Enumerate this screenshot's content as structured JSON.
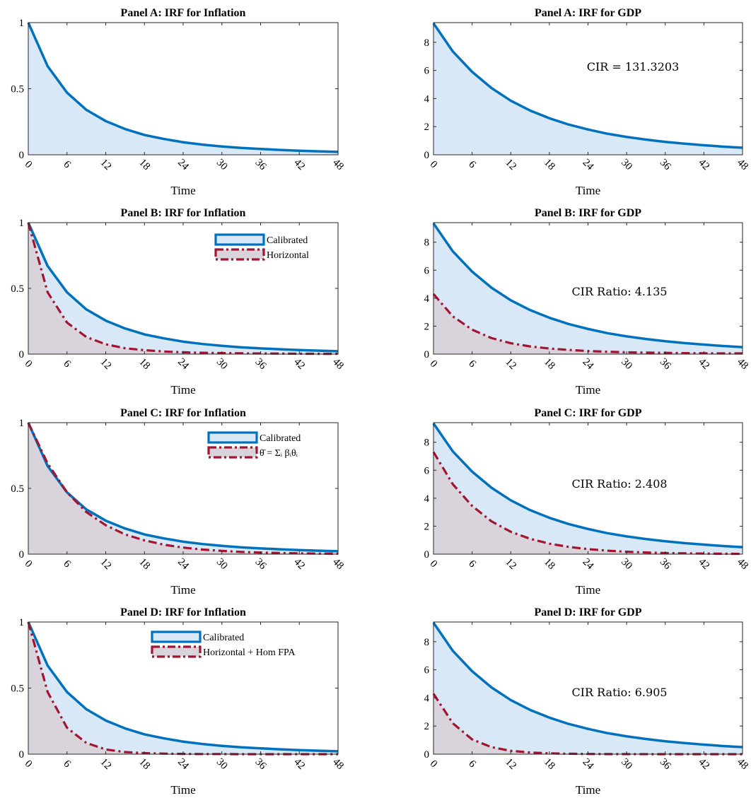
{
  "colors": {
    "calibrated_line": "#0072BD",
    "calibrated_fill": "#D9E8F6",
    "alt_line": "#A2142F",
    "alt_fill": "#D9D3DC"
  },
  "chart_data": [
    {
      "type": "area",
      "title": "Panel A: IRF for Inflation",
      "xlabel": "Time",
      "ylabel": "",
      "xlim": [
        0,
        48
      ],
      "ylim": [
        0,
        1
      ],
      "x_ticks": [
        "0",
        "6",
        "12",
        "18",
        "24",
        "30",
        "36",
        "42",
        "48"
      ],
      "y_ticks": [
        "0",
        "0.5",
        "1"
      ],
      "series": [
        {
          "name": "",
          "style": "solid",
          "x": [
            0,
            3,
            6,
            9,
            12,
            15,
            18,
            21,
            24,
            27,
            30,
            33,
            36,
            39,
            42,
            45,
            48
          ],
          "values": [
            1.0,
            0.67,
            0.47,
            0.34,
            0.255,
            0.195,
            0.15,
            0.12,
            0.095,
            0.077,
            0.063,
            0.052,
            0.044,
            0.037,
            0.031,
            0.026,
            0.022
          ]
        }
      ],
      "legend": [],
      "annotation": ""
    },
    {
      "type": "area",
      "title": "Panel A: IRF for GDP",
      "xlabel": "Time",
      "ylabel": "",
      "xlim": [
        0,
        48
      ],
      "ylim": [
        0,
        9.4
      ],
      "x_ticks": [
        "0",
        "6",
        "12",
        "18",
        "24",
        "30",
        "36",
        "42",
        "48"
      ],
      "y_ticks": [
        "0",
        "2",
        "4",
        "6",
        "8"
      ],
      "series": [
        {
          "name": "",
          "style": "solid",
          "x": [
            0,
            3,
            6,
            9,
            12,
            15,
            18,
            21,
            24,
            27,
            30,
            33,
            36,
            39,
            42,
            45,
            48
          ],
          "values": [
            9.35,
            7.35,
            5.9,
            4.75,
            3.85,
            3.15,
            2.6,
            2.15,
            1.8,
            1.5,
            1.27,
            1.08,
            0.92,
            0.79,
            0.68,
            0.58,
            0.5
          ]
        }
      ],
      "legend": [],
      "annotation": "CIR = 131.3203"
    },
    {
      "type": "area",
      "title": "Panel B: IRF for Inflation",
      "xlabel": "Time",
      "ylabel": "",
      "xlim": [
        0,
        48
      ],
      "ylim": [
        0,
        1
      ],
      "x_ticks": [
        "0",
        "6",
        "12",
        "18",
        "24",
        "30",
        "36",
        "42",
        "48"
      ],
      "y_ticks": [
        "0",
        "0.5",
        "1"
      ],
      "series": [
        {
          "name": "Calibrated",
          "style": "solid",
          "x": [
            0,
            3,
            6,
            9,
            12,
            15,
            18,
            21,
            24,
            27,
            30,
            33,
            36,
            39,
            42,
            45,
            48
          ],
          "values": [
            1.0,
            0.67,
            0.47,
            0.34,
            0.255,
            0.195,
            0.15,
            0.12,
            0.095,
            0.077,
            0.063,
            0.052,
            0.044,
            0.037,
            0.031,
            0.026,
            0.022
          ]
        },
        {
          "name": "Horizontal",
          "style": "dashdot",
          "x": [
            0,
            3,
            6,
            9,
            12,
            15,
            18,
            21,
            24,
            27,
            30,
            33,
            36,
            39,
            42,
            45,
            48
          ],
          "values": [
            1.0,
            0.47,
            0.24,
            0.13,
            0.075,
            0.045,
            0.03,
            0.02,
            0.014,
            0.01,
            0.008,
            0.006,
            0.005,
            0.004,
            0.003,
            0.002,
            0.002
          ]
        }
      ],
      "legend": [
        "Calibrated",
        "Horizontal"
      ],
      "annotation": "CIR Ratio: 4.135"
    },
    {
      "type": "area",
      "title": "Panel B: IRF for GDP",
      "xlabel": "Time",
      "ylabel": "",
      "xlim": [
        0,
        48
      ],
      "ylim": [
        0,
        9.4
      ],
      "x_ticks": [
        "0",
        "6",
        "12",
        "18",
        "24",
        "30",
        "36",
        "42",
        "48"
      ],
      "y_ticks": [
        "0",
        "2",
        "4",
        "6",
        "8"
      ],
      "series": [
        {
          "name": "Calibrated",
          "style": "solid",
          "x": [
            0,
            3,
            6,
            9,
            12,
            15,
            18,
            21,
            24,
            27,
            30,
            33,
            36,
            39,
            42,
            45,
            48
          ],
          "values": [
            9.35,
            7.35,
            5.9,
            4.75,
            3.85,
            3.15,
            2.6,
            2.15,
            1.8,
            1.5,
            1.27,
            1.08,
            0.92,
            0.79,
            0.68,
            0.58,
            0.5
          ]
        },
        {
          "name": "Horizontal",
          "style": "dashdot",
          "x": [
            0,
            3,
            6,
            9,
            12,
            15,
            18,
            21,
            24,
            27,
            30,
            33,
            36,
            39,
            42,
            45,
            48
          ],
          "values": [
            4.3,
            2.7,
            1.75,
            1.15,
            0.78,
            0.55,
            0.4,
            0.3,
            0.22,
            0.17,
            0.13,
            0.11,
            0.09,
            0.07,
            0.06,
            0.05,
            0.05
          ]
        }
      ],
      "legend": [],
      "annotation": "CIR Ratio: 4.135"
    },
    {
      "type": "area",
      "title": "Panel C: IRF for Inflation",
      "xlabel": "Time",
      "ylabel": "",
      "xlim": [
        0,
        48
      ],
      "ylim": [
        0,
        1
      ],
      "x_ticks": [
        "0",
        "6",
        "12",
        "18",
        "24",
        "30",
        "36",
        "42",
        "48"
      ],
      "y_ticks": [
        "0",
        "0.5",
        "1"
      ],
      "series": [
        {
          "name": "Calibrated",
          "style": "solid",
          "x": [
            0,
            3,
            6,
            9,
            12,
            15,
            18,
            21,
            24,
            27,
            30,
            33,
            36,
            39,
            42,
            45,
            48
          ],
          "values": [
            1.0,
            0.67,
            0.47,
            0.34,
            0.255,
            0.195,
            0.15,
            0.12,
            0.095,
            0.077,
            0.063,
            0.052,
            0.044,
            0.037,
            0.031,
            0.026,
            0.022
          ]
        },
        {
          "name": "θ̄ = Σᵢ βᵢθᵢ",
          "style": "dashdot",
          "x": [
            0,
            3,
            6,
            9,
            12,
            15,
            18,
            21,
            24,
            27,
            30,
            33,
            36,
            39,
            42,
            45,
            48
          ],
          "values": [
            1.0,
            0.69,
            0.47,
            0.32,
            0.22,
            0.15,
            0.105,
            0.072,
            0.05,
            0.035,
            0.025,
            0.017,
            0.012,
            0.009,
            0.006,
            0.004,
            0.003
          ]
        }
      ],
      "legend": [
        "Calibrated",
        "θ̄ = Σᵢ βᵢθᵢ"
      ],
      "annotation": ""
    },
    {
      "type": "area",
      "title": "Panel C: IRF for GDP",
      "xlabel": "Time",
      "ylabel": "",
      "xlim": [
        0,
        48
      ],
      "ylim": [
        0,
        9.4
      ],
      "x_ticks": [
        "0",
        "6",
        "12",
        "18",
        "24",
        "30",
        "36",
        "42",
        "48"
      ],
      "y_ticks": [
        "0",
        "2",
        "4",
        "6",
        "8"
      ],
      "series": [
        {
          "name": "Calibrated",
          "style": "solid",
          "x": [
            0,
            3,
            6,
            9,
            12,
            15,
            18,
            21,
            24,
            27,
            30,
            33,
            36,
            39,
            42,
            45,
            48
          ],
          "values": [
            9.35,
            7.35,
            5.9,
            4.75,
            3.85,
            3.15,
            2.6,
            2.15,
            1.8,
            1.5,
            1.27,
            1.08,
            0.92,
            0.79,
            0.68,
            0.58,
            0.5
          ]
        },
        {
          "name": "θ̄ = Σᵢ βᵢθᵢ",
          "style": "dashdot",
          "x": [
            0,
            3,
            6,
            9,
            12,
            15,
            18,
            21,
            24,
            27,
            30,
            33,
            36,
            39,
            42,
            45,
            48
          ],
          "values": [
            7.3,
            5.0,
            3.45,
            2.35,
            1.6,
            1.1,
            0.75,
            0.52,
            0.36,
            0.25,
            0.17,
            0.12,
            0.08,
            0.06,
            0.04,
            0.03,
            0.02
          ]
        }
      ],
      "legend": [],
      "annotation": "CIR Ratio: 2.408"
    },
    {
      "type": "area",
      "title": "Panel D: IRF for Inflation",
      "xlabel": "Time",
      "ylabel": "",
      "xlim": [
        0,
        48
      ],
      "ylim": [
        0,
        1
      ],
      "x_ticks": [
        "0",
        "6",
        "12",
        "18",
        "24",
        "30",
        "36",
        "42",
        "48"
      ],
      "y_ticks": [
        "0",
        "0.5",
        "1"
      ],
      "series": [
        {
          "name": "Calibrated",
          "style": "solid",
          "x": [
            0,
            3,
            6,
            9,
            12,
            15,
            18,
            21,
            24,
            27,
            30,
            33,
            36,
            39,
            42,
            45,
            48
          ],
          "values": [
            1.0,
            0.67,
            0.47,
            0.34,
            0.255,
            0.195,
            0.15,
            0.12,
            0.095,
            0.077,
            0.063,
            0.052,
            0.044,
            0.037,
            0.031,
            0.026,
            0.022
          ]
        },
        {
          "name": "Horizontal + Hom FPA",
          "style": "dashdot",
          "x": [
            0,
            3,
            6,
            9,
            12,
            15,
            18,
            21,
            24,
            27,
            30,
            33,
            36,
            39,
            42,
            45,
            48
          ],
          "values": [
            1.0,
            0.47,
            0.2,
            0.085,
            0.036,
            0.016,
            0.008,
            0.004,
            0.002,
            0.001,
            0.001,
            0,
            0,
            0,
            0,
            0,
            0
          ]
        }
      ],
      "legend": [
        "Calibrated",
        "Horizontal + Hom FPA"
      ],
      "annotation": ""
    },
    {
      "type": "area",
      "title": "Panel D: IRF for GDP",
      "xlabel": "Time",
      "ylabel": "",
      "xlim": [
        0,
        48
      ],
      "ylim": [
        0,
        9.4
      ],
      "x_ticks": [
        "0",
        "6",
        "12",
        "18",
        "24",
        "30",
        "36",
        "42",
        "48"
      ],
      "y_ticks": [
        "0",
        "2",
        "4",
        "6",
        "8"
      ],
      "series": [
        {
          "name": "Calibrated",
          "style": "solid",
          "x": [
            0,
            3,
            6,
            9,
            12,
            15,
            18,
            21,
            24,
            27,
            30,
            33,
            36,
            39,
            42,
            45,
            48
          ],
          "values": [
            9.35,
            7.35,
            5.9,
            4.75,
            3.85,
            3.15,
            2.6,
            2.15,
            1.8,
            1.5,
            1.27,
            1.08,
            0.92,
            0.79,
            0.68,
            0.58,
            0.5
          ]
        },
        {
          "name": "Horizontal + Hom FPA",
          "style": "dashdot",
          "x": [
            0,
            3,
            6,
            9,
            12,
            15,
            18,
            21,
            24,
            27,
            30,
            33,
            36,
            39,
            42,
            45,
            48
          ],
          "values": [
            4.3,
            2.2,
            1.05,
            0.5,
            0.24,
            0.12,
            0.06,
            0.03,
            0.015,
            0.008,
            0.004,
            0.002,
            0.001,
            0,
            0,
            0,
            0
          ]
        }
      ],
      "legend": [],
      "annotation": "CIR Ratio: 6.905"
    }
  ]
}
